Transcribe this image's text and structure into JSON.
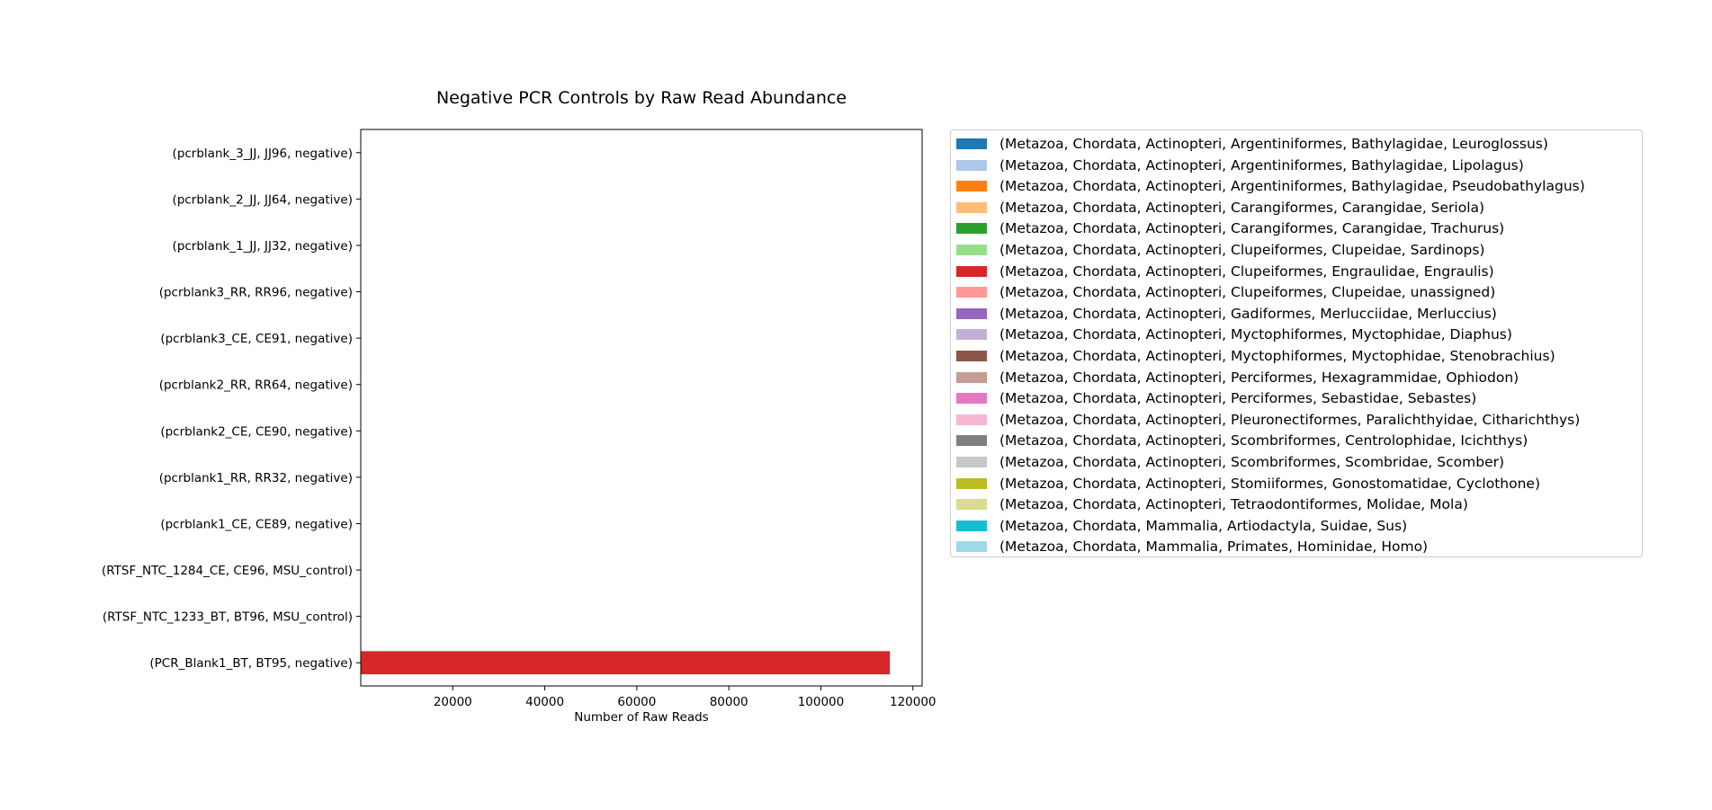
{
  "chart_data": {
    "type": "bar",
    "orientation": "horizontal",
    "stacked": true,
    "title": "Negative PCR Controls by Raw Read Abundance",
    "xlabel": "Number of Raw Reads",
    "ylabel": "",
    "xlim": [
      0,
      122000
    ],
    "xticks": [
      20000,
      40000,
      60000,
      80000,
      100000,
      120000
    ],
    "xtick_labels": [
      "20000",
      "40000",
      "60000",
      "80000",
      "100000",
      "120000"
    ],
    "grid": false,
    "legend_position": "right, outside plot",
    "categories": [
      "(pcrblank_3_JJ, JJ96, negative)",
      "(pcrblank_2_JJ, JJ64, negative)",
      "(pcrblank_1_JJ, JJ32, negative)",
      "(pcrblank3_RR, RR96, negative)",
      "(pcrblank3_CE, CE91, negative)",
      "(pcrblank2_RR, RR64, negative)",
      "(pcrblank2_CE, CE90, negative)",
      "(pcrblank1_RR, RR32, negative)",
      "(pcrblank1_CE, CE89, negative)",
      "(RTSF_NTC_1284_CE, CE96, MSU_control)",
      "(RTSF_NTC_1233_BT, BT96, MSU_control)",
      "(PCR_Blank1_BT, BT95, negative)"
    ],
    "series": [
      {
        "name": "(Metazoa, Chordata, Actinopteri, Argentiniformes, Bathylagidae, Leuroglossus)",
        "color": "#1f77b4",
        "values": [
          0,
          0,
          0,
          0,
          0,
          0,
          0,
          0,
          0,
          0,
          0,
          0
        ]
      },
      {
        "name": "(Metazoa, Chordata, Actinopteri, Argentiniformes, Bathylagidae, Lipolagus)",
        "color": "#aec7e8",
        "values": [
          0,
          0,
          0,
          0,
          0,
          0,
          0,
          0,
          0,
          0,
          0,
          0
        ]
      },
      {
        "name": "(Metazoa, Chordata, Actinopteri, Argentiniformes, Bathylagidae, Pseudobathylagus)",
        "color": "#ff7f0e",
        "values": [
          0,
          0,
          0,
          0,
          0,
          0,
          0,
          0,
          0,
          0,
          0,
          0
        ]
      },
      {
        "name": "(Metazoa, Chordata, Actinopteri, Carangiformes, Carangidae, Seriola)",
        "color": "#ffbb78",
        "values": [
          0,
          0,
          0,
          0,
          0,
          0,
          0,
          0,
          0,
          0,
          0,
          0
        ]
      },
      {
        "name": "(Metazoa, Chordata, Actinopteri, Carangiformes, Carangidae, Trachurus)",
        "color": "#2ca02c",
        "values": [
          0,
          0,
          0,
          0,
          0,
          0,
          0,
          0,
          0,
          0,
          0,
          0
        ]
      },
      {
        "name": "(Metazoa, Chordata, Actinopteri, Clupeiformes, Clupeidae, Sardinops)",
        "color": "#98df8a",
        "values": [
          0,
          0,
          0,
          0,
          0,
          0,
          0,
          0,
          0,
          0,
          0,
          0
        ]
      },
      {
        "name": "(Metazoa, Chordata, Actinopteri, Clupeiformes, Engraulidae, Engraulis)",
        "color": "#d62728",
        "values": [
          0,
          0,
          0,
          0,
          0,
          0,
          0,
          0,
          0,
          0,
          0,
          115000
        ]
      },
      {
        "name": "(Metazoa, Chordata, Actinopteri, Clupeiformes, Clupeidae, unassigned)",
        "color": "#ff9896",
        "values": [
          0,
          0,
          0,
          0,
          0,
          0,
          0,
          0,
          0,
          0,
          0,
          0
        ]
      },
      {
        "name": "(Metazoa, Chordata, Actinopteri, Gadiformes, Merlucciidae, Merluccius)",
        "color": "#9467bd",
        "values": [
          0,
          0,
          0,
          0,
          0,
          0,
          0,
          0,
          0,
          0,
          0,
          0
        ]
      },
      {
        "name": "(Metazoa, Chordata, Actinopteri, Myctophiformes, Myctophidae, Diaphus)",
        "color": "#c5b0d5",
        "values": [
          0,
          0,
          0,
          0,
          0,
          0,
          0,
          0,
          0,
          0,
          0,
          0
        ]
      },
      {
        "name": "(Metazoa, Chordata, Actinopteri, Myctophiformes, Myctophidae, Stenobrachius)",
        "color": "#8c564b",
        "values": [
          0,
          0,
          0,
          0,
          0,
          0,
          0,
          0,
          0,
          0,
          0,
          0
        ]
      },
      {
        "name": "(Metazoa, Chordata, Actinopteri, Perciformes, Hexagrammidae, Ophiodon)",
        "color": "#c49c94",
        "values": [
          0,
          0,
          0,
          0,
          0,
          0,
          0,
          0,
          0,
          0,
          0,
          0
        ]
      },
      {
        "name": "(Metazoa, Chordata, Actinopteri, Perciformes, Sebastidae, Sebastes)",
        "color": "#e377c2",
        "values": [
          0,
          0,
          0,
          0,
          0,
          0,
          0,
          0,
          0,
          0,
          0,
          0
        ]
      },
      {
        "name": "(Metazoa, Chordata, Actinopteri, Pleuronectiformes, Paralichthyidae, Citharichthys)",
        "color": "#f7b6d2",
        "values": [
          0,
          0,
          0,
          0,
          0,
          0,
          0,
          0,
          0,
          0,
          0,
          0
        ]
      },
      {
        "name": "(Metazoa, Chordata, Actinopteri, Scombriformes, Centrolophidae, Icichthys)",
        "color": "#7f7f7f",
        "values": [
          0,
          0,
          0,
          0,
          0,
          0,
          0,
          0,
          0,
          0,
          0,
          0
        ]
      },
      {
        "name": "(Metazoa, Chordata, Actinopteri, Scombriformes, Scombridae, Scomber)",
        "color": "#c7c7c7",
        "values": [
          0,
          0,
          0,
          0,
          0,
          0,
          0,
          0,
          0,
          0,
          0,
          0
        ]
      },
      {
        "name": "(Metazoa, Chordata, Actinopteri, Stomiiformes, Gonostomatidae, Cyclothone)",
        "color": "#bcbd22",
        "values": [
          0,
          0,
          0,
          0,
          0,
          0,
          0,
          0,
          0,
          0,
          0,
          0
        ]
      },
      {
        "name": "(Metazoa, Chordata, Actinopteri, Tetraodontiformes, Molidae, Mola)",
        "color": "#dbdb8d",
        "values": [
          0,
          0,
          0,
          0,
          0,
          0,
          0,
          0,
          0,
          0,
          0,
          0
        ]
      },
      {
        "name": "(Metazoa, Chordata, Mammalia, Artiodactyla, Suidae, Sus)",
        "color": "#17becf",
        "values": [
          0,
          0,
          0,
          0,
          0,
          0,
          0,
          0,
          0,
          0,
          0,
          0
        ]
      },
      {
        "name": "(Metazoa, Chordata, Mammalia, Primates, Hominidae, Homo)",
        "color": "#9edae5",
        "values": [
          0,
          0,
          0,
          0,
          0,
          0,
          0,
          0,
          0,
          0,
          0,
          0
        ]
      }
    ]
  }
}
